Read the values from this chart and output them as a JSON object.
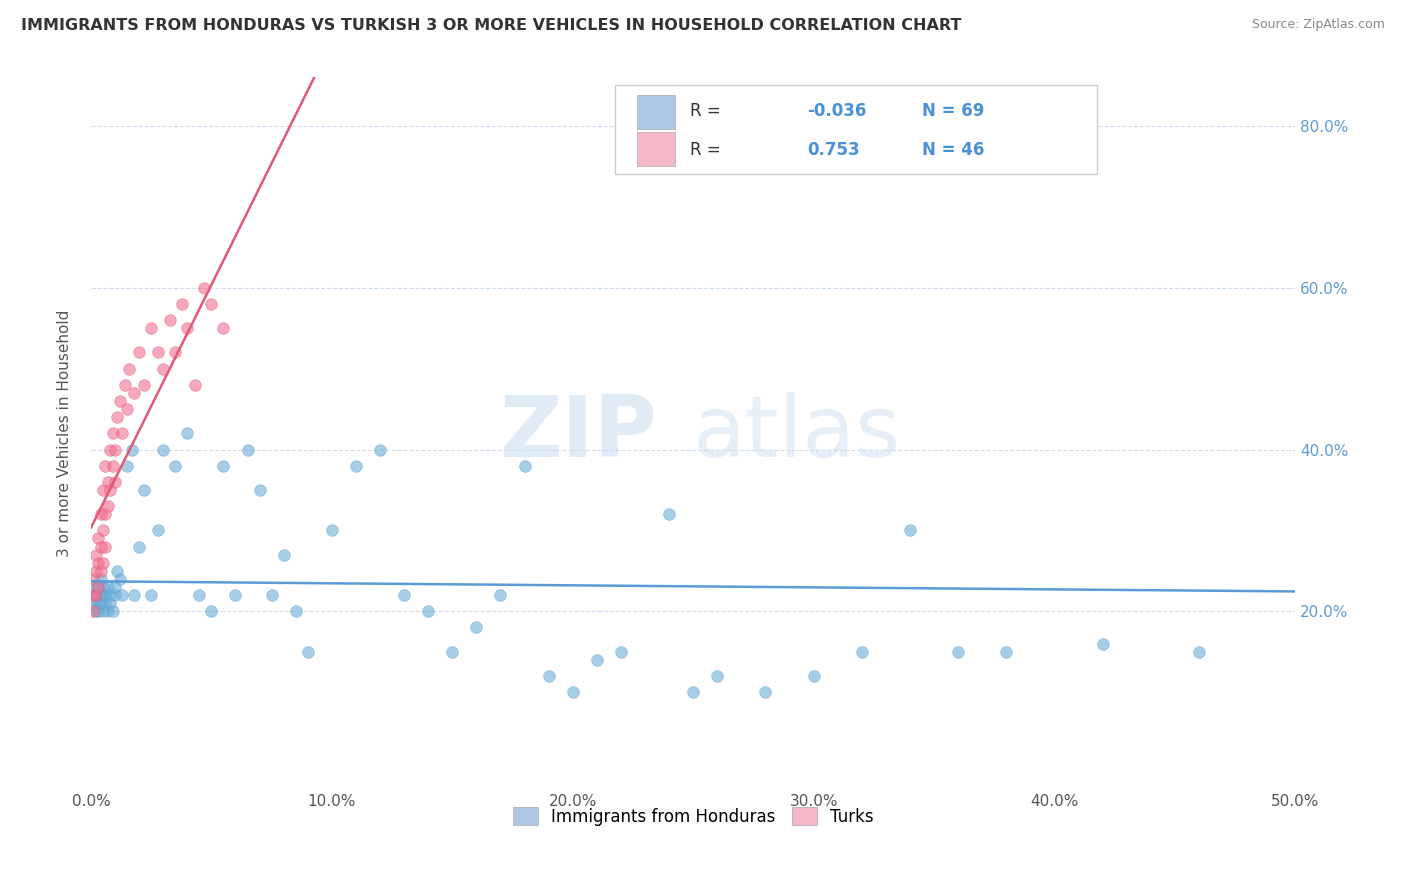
{
  "title": "IMMIGRANTS FROM HONDURAS VS TURKISH 3 OR MORE VEHICLES IN HOUSEHOLD CORRELATION CHART",
  "source": "Source: ZipAtlas.com",
  "ylabel": "3 or more Vehicles in Household",
  "xlim": [
    0.0,
    0.5
  ],
  "ylim": [
    -0.02,
    0.86
  ],
  "xtick_labels": [
    "0.0%",
    "10.0%",
    "20.0%",
    "30.0%",
    "40.0%",
    "50.0%"
  ],
  "xtick_vals": [
    0.0,
    0.1,
    0.2,
    0.3,
    0.4,
    0.5
  ],
  "ytick_labels": [
    "20.0%",
    "40.0%",
    "60.0%",
    "80.0%"
  ],
  "ytick_vals": [
    0.2,
    0.4,
    0.6,
    0.8
  ],
  "watermark_zip": "ZIP",
  "watermark_atlas": "atlas",
  "legend_labels": [
    "Immigrants from Honduras",
    "Turks"
  ],
  "r_honduras": -0.036,
  "n_honduras": 69,
  "r_turks": 0.753,
  "n_turks": 46,
  "color_honduras": "#aec6e8",
  "color_turks": "#f4b8c8",
  "line_color_honduras": "#5b9bd5",
  "line_color_turks": "#e05a78",
  "scatter_color_honduras": "#6aaed6",
  "scatter_color_turks": "#f07090",
  "honduras_x": [
    0.001,
    0.001,
    0.002,
    0.002,
    0.003,
    0.003,
    0.003,
    0.004,
    0.004,
    0.004,
    0.005,
    0.005,
    0.005,
    0.006,
    0.006,
    0.007,
    0.007,
    0.008,
    0.008,
    0.009,
    0.01,
    0.01,
    0.011,
    0.012,
    0.013,
    0.015,
    0.017,
    0.018,
    0.02,
    0.022,
    0.025,
    0.028,
    0.03,
    0.035,
    0.04,
    0.045,
    0.05,
    0.055,
    0.06,
    0.065,
    0.07,
    0.075,
    0.08,
    0.085,
    0.09,
    0.1,
    0.11,
    0.12,
    0.13,
    0.14,
    0.15,
    0.16,
    0.17,
    0.18,
    0.19,
    0.2,
    0.21,
    0.22,
    0.24,
    0.25,
    0.26,
    0.28,
    0.3,
    0.32,
    0.34,
    0.36,
    0.38,
    0.42,
    0.46
  ],
  "honduras_y": [
    0.21,
    0.23,
    0.2,
    0.22,
    0.21,
    0.23,
    0.2,
    0.22,
    0.21,
    0.24,
    0.22,
    0.2,
    0.23,
    0.21,
    0.22,
    0.2,
    0.23,
    0.22,
    0.21,
    0.2,
    0.22,
    0.23,
    0.25,
    0.24,
    0.22,
    0.38,
    0.4,
    0.22,
    0.28,
    0.35,
    0.22,
    0.3,
    0.4,
    0.38,
    0.42,
    0.22,
    0.2,
    0.38,
    0.22,
    0.4,
    0.35,
    0.22,
    0.27,
    0.2,
    0.15,
    0.3,
    0.38,
    0.4,
    0.22,
    0.2,
    0.15,
    0.18,
    0.22,
    0.38,
    0.12,
    0.1,
    0.14,
    0.15,
    0.32,
    0.1,
    0.12,
    0.1,
    0.12,
    0.15,
    0.3,
    0.15,
    0.15,
    0.16,
    0.15
  ],
  "turks_x": [
    0.001,
    0.001,
    0.001,
    0.002,
    0.002,
    0.002,
    0.003,
    0.003,
    0.003,
    0.004,
    0.004,
    0.004,
    0.005,
    0.005,
    0.005,
    0.006,
    0.006,
    0.006,
    0.007,
    0.007,
    0.008,
    0.008,
    0.009,
    0.009,
    0.01,
    0.01,
    0.011,
    0.012,
    0.013,
    0.014,
    0.015,
    0.016,
    0.018,
    0.02,
    0.022,
    0.025,
    0.028,
    0.03,
    0.033,
    0.035,
    0.038,
    0.04,
    0.043,
    0.047,
    0.05,
    0.055
  ],
  "turks_y": [
    0.2,
    0.22,
    0.24,
    0.22,
    0.25,
    0.27,
    0.23,
    0.26,
    0.29,
    0.25,
    0.28,
    0.32,
    0.26,
    0.3,
    0.35,
    0.28,
    0.32,
    0.38,
    0.33,
    0.36,
    0.35,
    0.4,
    0.38,
    0.42,
    0.36,
    0.4,
    0.44,
    0.46,
    0.42,
    0.48,
    0.45,
    0.5,
    0.47,
    0.52,
    0.48,
    0.55,
    0.52,
    0.5,
    0.56,
    0.52,
    0.58,
    0.55,
    0.48,
    0.6,
    0.58,
    0.55
  ]
}
